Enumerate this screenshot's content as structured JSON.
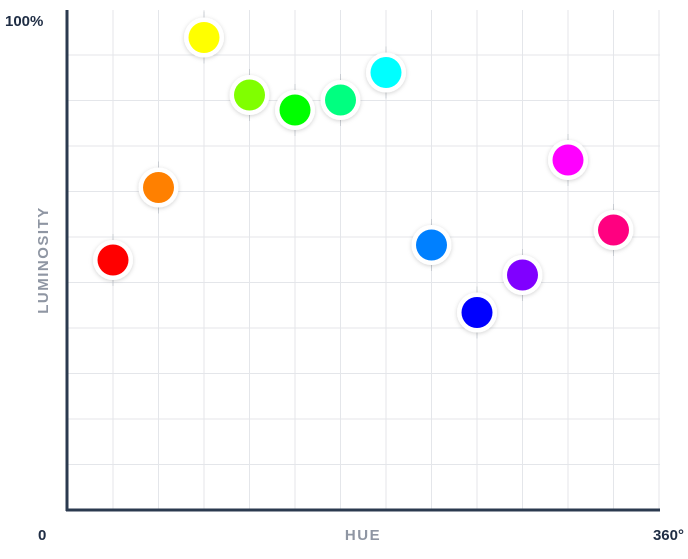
{
  "chart_data": {
    "type": "scatter",
    "title": "",
    "xlabel": "HUE",
    "ylabel": "LUMINOSITY",
    "x_tick_labels": {
      "min": "0",
      "max": "360°"
    },
    "y_tick_labels": {
      "max": "100%"
    },
    "xlim": [
      0,
      360
    ],
    "ylim": [
      0,
      100
    ],
    "grid": true,
    "legend": "none",
    "points": [
      {
        "x": 0,
        "y": 50,
        "color": "#ff0000"
      },
      {
        "x": 30,
        "y": 64.5,
        "color": "#ff8000"
      },
      {
        "x": 60,
        "y": 94.5,
        "color": "#ffff00"
      },
      {
        "x": 90,
        "y": 83,
        "color": "#80ff00"
      },
      {
        "x": 120,
        "y": 80,
        "color": "#00ff00"
      },
      {
        "x": 150,
        "y": 82,
        "color": "#00ff80"
      },
      {
        "x": 180,
        "y": 87.5,
        "color": "#00ffff"
      },
      {
        "x": 210,
        "y": 53,
        "color": "#0080ff"
      },
      {
        "x": 240,
        "y": 39.5,
        "color": "#0000ff"
      },
      {
        "x": 270,
        "y": 47,
        "color": "#8000ff"
      },
      {
        "x": 300,
        "y": 70,
        "color": "#ff00ff"
      },
      {
        "x": 330,
        "y": 56,
        "color": "#ff0080"
      }
    ]
  }
}
